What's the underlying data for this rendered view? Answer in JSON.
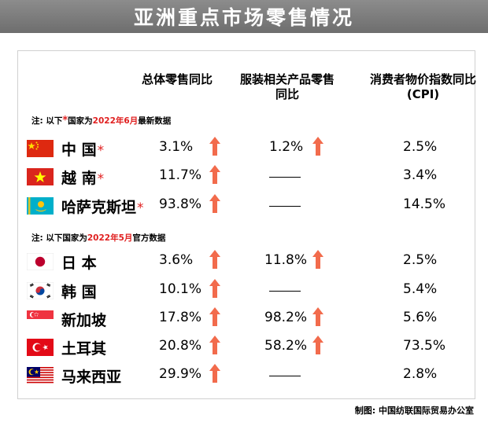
{
  "title": "亚洲重点市场零售情况",
  "headers": {
    "retail": "总体零售同比",
    "apparel_line1": "服装相关产品零售",
    "apparel_line2": "同比",
    "cpi_line1": "消费者物价指数同比",
    "cpi_line2": "(CPI)"
  },
  "note1": {
    "prefix": "注:   以下",
    "star": "*",
    "mid": "国家为",
    "date": "2022年6月",
    "suffix": "最新数据"
  },
  "note2": {
    "prefix": "注:   以下国家为",
    "date": "2022年5月",
    "suffix": "官方数据"
  },
  "star_symbol": "*",
  "rows": [
    {
      "flag": "china-flag",
      "name": "中  国",
      "starred": true,
      "retail": "3.1%",
      "retail_up": true,
      "apparel": "1.2%",
      "apparel_up": true,
      "cpi": "2.5%"
    },
    {
      "flag": "vietnam-flag",
      "name": "越  南",
      "starred": true,
      "retail": "11.7%",
      "retail_up": true,
      "apparel": "",
      "apparel_up": false,
      "cpi": "3.4%"
    },
    {
      "flag": "kazakhstan-flag",
      "name": "哈萨克斯坦",
      "starred": true,
      "retail": "93.8%",
      "retail_up": true,
      "apparel": "",
      "apparel_up": false,
      "cpi": "14.5%"
    },
    {
      "flag": "japan-flag",
      "name": "日  本",
      "starred": false,
      "retail": "3.6%",
      "retail_up": true,
      "apparel": "11.8%",
      "apparel_up": true,
      "cpi": "2.5%"
    },
    {
      "flag": "korea-flag",
      "name": "韩  国",
      "starred": false,
      "retail": "10.1%",
      "retail_up": true,
      "apparel": "",
      "apparel_up": false,
      "cpi": "5.4%"
    },
    {
      "flag": "singapore-flag",
      "name": "新加坡",
      "starred": false,
      "retail": "17.8%",
      "retail_up": true,
      "apparel": "98.2%",
      "apparel_up": true,
      "cpi": "5.6%"
    },
    {
      "flag": "turkey-flag",
      "name": "土耳其",
      "starred": false,
      "retail": "20.8%",
      "retail_up": true,
      "apparel": "58.2%",
      "apparel_up": true,
      "cpi": "73.5%"
    },
    {
      "flag": "malaysia-flag",
      "name": "马来西亚",
      "starred": false,
      "retail": "29.9%",
      "retail_up": true,
      "apparel": "",
      "apparel_up": false,
      "cpi": "2.8%"
    }
  ],
  "footer": "制图:   中国纺联国际贸易办公室",
  "colors": {
    "arrow": "#f26b4c",
    "star": "#e02020",
    "title_bg": "#7a7a7a"
  }
}
